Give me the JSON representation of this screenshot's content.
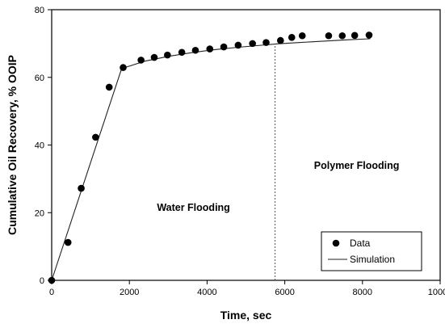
{
  "chart_data": {
    "type": "scatter",
    "xlabel": "Time, sec",
    "ylabel": "Cumulative Oil Recovery, % OOIP",
    "xlim": [
      0,
      10000
    ],
    "ylim": [
      0,
      80
    ],
    "x_ticks": [
      0,
      2000,
      4000,
      6000,
      8000,
      10000
    ],
    "y_ticks": [
      0,
      20,
      40,
      60,
      80
    ],
    "grid": false,
    "legend_position": "bottom-right",
    "series": [
      {
        "name": "Data",
        "style": "markers",
        "x": [
          0,
          420,
          760,
          1130,
          1480,
          1840,
          2300,
          2640,
          2980,
          3350,
          3700,
          4070,
          4430,
          4800,
          5170,
          5520,
          5890,
          6180,
          6450,
          7130,
          7480,
          7800,
          8170
        ],
        "y": [
          0,
          11.2,
          27.2,
          42.3,
          57.1,
          62.9,
          65.1,
          65.9,
          66.6,
          67.4,
          68.0,
          68.4,
          69.0,
          69.5,
          70.0,
          70.3,
          70.9,
          71.8,
          72.3,
          72.3,
          72.3,
          72.4,
          72.5
        ]
      },
      {
        "name": "Simulation",
        "style": "line",
        "x": [
          0,
          1800,
          2400,
          3000,
          3600,
          4200,
          4800,
          5400,
          5800,
          6400,
          7000,
          7600,
          8200
        ],
        "y": [
          0,
          62.6,
          64.8,
          66.2,
          67.3,
          68.2,
          68.9,
          69.5,
          69.9,
          70.3,
          70.7,
          71.1,
          71.4
        ]
      }
    ],
    "divider_x": 5750,
    "annotations": [
      {
        "text": "Water Flooding",
        "x": 3650,
        "y": 20.5
      },
      {
        "text": "Polymer Flooding",
        "x": 7850,
        "y": 33
      }
    ]
  }
}
